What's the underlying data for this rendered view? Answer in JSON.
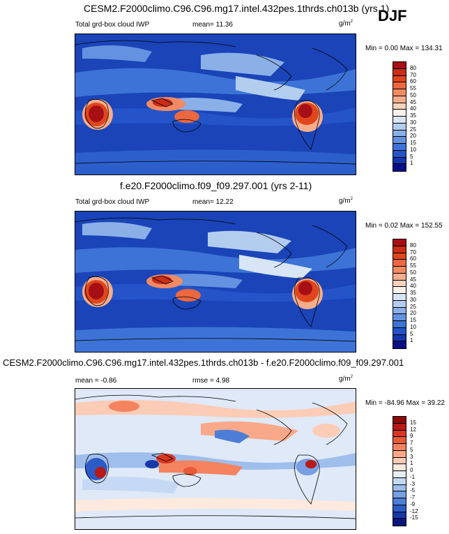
{
  "season": "DJF",
  "units_base": "g/m",
  "units_exp": "2",
  "panels": [
    {
      "title": "CESM2.F2000climo.C96.C96.mg17.intel.432pes.1thrds.ch013b (yrs 1)",
      "left_label": "Total grd-box cloud IWP",
      "stat_label": "mean=  11.36",
      "minmax": "Min =   0.00 Max = 134.31",
      "levels": [
        "80",
        "70",
        "60",
        "55",
        "50",
        "45",
        "40",
        "35",
        "30",
        "25",
        "20",
        "15",
        "10",
        "5",
        "1"
      ],
      "colors": [
        "#a50f15",
        "#cb2d16",
        "#e0461c",
        "#ec6840",
        "#f28a63",
        "#f6ad8c",
        "#fbd3bd",
        "#fdf2ea",
        "#d8e5f6",
        "#b3cdef",
        "#8bb0e8",
        "#6492e0",
        "#3d73d6",
        "#2553c8",
        "#1435ae",
        "#070f87"
      ]
    },
    {
      "title": "f.e20.F2000climo.f09_f09.297.001 (yrs 2-11)",
      "left_label": "Total grd-box cloud IWP",
      "stat_label": "mean=  12.22",
      "minmax": "Min =   0.02 Max = 152.55",
      "levels": [
        "80",
        "70",
        "60",
        "55",
        "50",
        "45",
        "40",
        "35",
        "30",
        "25",
        "20",
        "15",
        "10",
        "5",
        "1"
      ],
      "colors": [
        "#a50f15",
        "#cb2d16",
        "#e0461c",
        "#ec6840",
        "#f28a63",
        "#f6ad8c",
        "#fbd3bd",
        "#fdf2ea",
        "#d8e5f6",
        "#b3cdef",
        "#8bb0e8",
        "#6492e0",
        "#3d73d6",
        "#2553c8",
        "#1435ae",
        "#070f87"
      ]
    },
    {
      "title": "CESM2.F2000climo.C96.C96.mg17.intel.432pes.1thrds.ch013b - f.e20.F2000climo.f09_f09.297.001",
      "left_label": "mean =  -0.86",
      "stat_label": "rmse =   4.98",
      "minmax": "Min = -84.96 Max =  39.22",
      "levels": [
        "15",
        "12",
        "9",
        "7",
        "5",
        "3",
        "1",
        "0",
        "-1",
        "-3",
        "-5",
        "-7",
        "-9",
        "-12",
        "-15"
      ],
      "colors": [
        "#8b0b0b",
        "#b81a14",
        "#d9371f",
        "#ea5a36",
        "#f58360",
        "#f9a98a",
        "#fcccb6",
        "#fde9de",
        "#e4eefa",
        "#c5d9f4",
        "#9fbeec",
        "#779fe2",
        "#4d7dd6",
        "#2c5bc6",
        "#1739a8",
        "#091680"
      ]
    }
  ]
}
